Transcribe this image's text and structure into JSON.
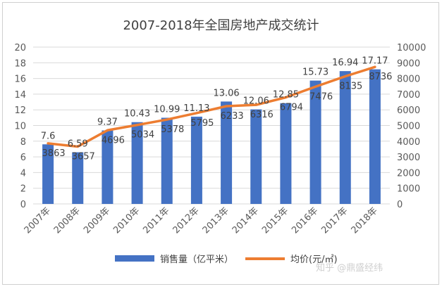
{
  "chart_data": {
    "type": "bar",
    "title": "2007-2018年全国房地产成交统计",
    "categories": [
      "2007年",
      "2008年",
      "2009年",
      "2010年",
      "2011年",
      "2012年",
      "2013年",
      "2014年",
      "2015年",
      "2016年",
      "2017年",
      "2018年"
    ],
    "series": [
      {
        "name": "销售量（亿平米）",
        "type": "bar",
        "axis": "left",
        "color": "#4472c4",
        "values": [
          7.6,
          6.59,
          9.37,
          10.43,
          10.99,
          11.13,
          13.06,
          12.06,
          12.85,
          15.73,
          16.94,
          17.17
        ],
        "labels": [
          "7.6",
          "6.59",
          "9.37",
          "10.43",
          "10.99",
          "11.13",
          "13.06",
          "12.06",
          "12.85",
          "15.73",
          "16.94",
          "17.17"
        ]
      },
      {
        "name": "均价(元/㎡)",
        "type": "line",
        "axis": "right",
        "color": "#ed7d31",
        "values": [
          3863,
          3657,
          4696,
          5034,
          5378,
          5795,
          6233,
          6316,
          6794,
          7476,
          8135,
          8736
        ],
        "labels": [
          "3863",
          "3657",
          "4696",
          "5034",
          "5378",
          "5795",
          "6233",
          "6316",
          "6794",
          "7476",
          "8135",
          "8736"
        ]
      }
    ],
    "left_axis": {
      "ylim": [
        0,
        20
      ],
      "ticks": [
        "0",
        "2",
        "4",
        "6",
        "8",
        "10",
        "12",
        "14",
        "16",
        "18",
        "20"
      ]
    },
    "right_axis": {
      "ylim": [
        0,
        10000
      ],
      "ticks": [
        "0",
        "1000",
        "2000",
        "3000",
        "4000",
        "5000",
        "6000",
        "7000",
        "8000",
        "9000",
        "10000"
      ]
    },
    "grid": true,
    "legend_position": "bottom"
  },
  "watermark": "知乎 @鼎盛经纬"
}
